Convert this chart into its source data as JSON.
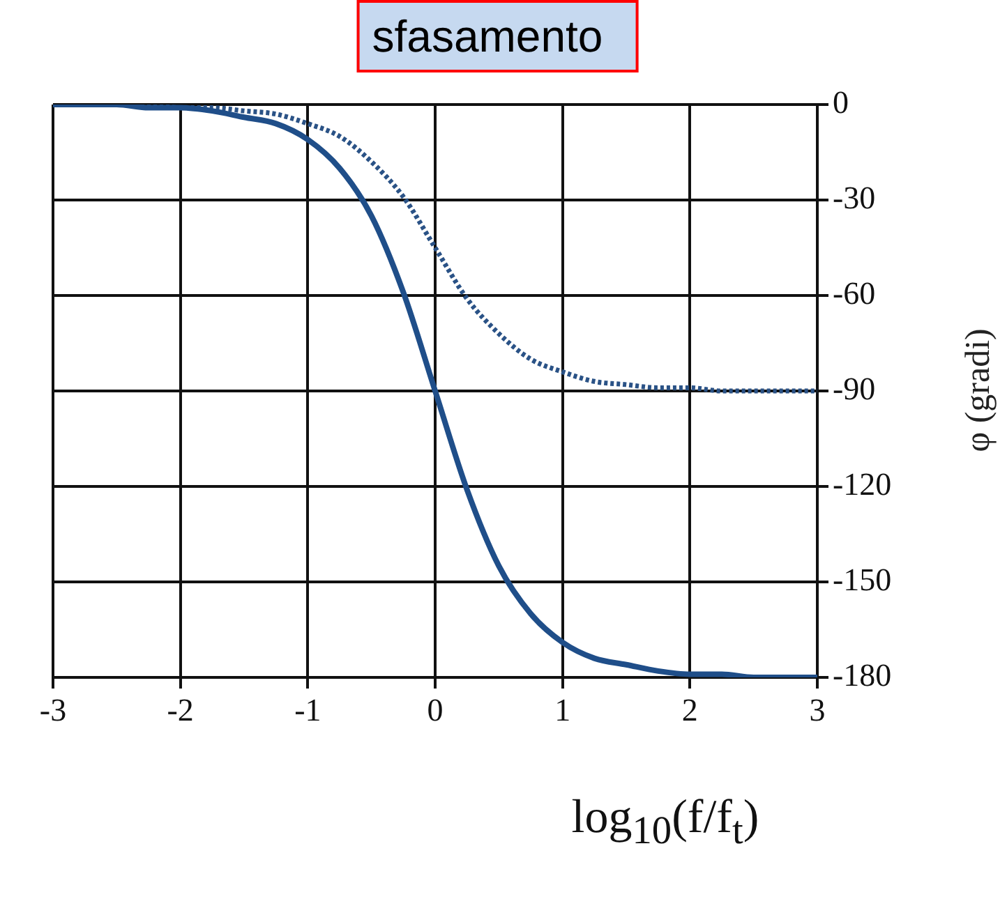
{
  "chart_data": {
    "type": "line",
    "title": "sfasamento",
    "xlabel": "log$_{10}$(f/f$_{t}$)",
    "ylabel": "φ (gradi)",
    "x": [
      -3,
      -2.75,
      -2.5,
      -2.25,
      -2,
      -1.75,
      -1.5,
      -1.25,
      -1,
      -0.75,
      -0.5,
      -0.25,
      0,
      0.25,
      0.5,
      0.75,
      1,
      1.25,
      1.5,
      1.75,
      2,
      2.25,
      2.5,
      2.75,
      3
    ],
    "series": [
      {
        "color": "#1f4e89",
        "values": [
          0,
          0,
          0,
          -1,
          -1,
          -2,
          -4,
          -6,
          -11,
          -20,
          -35,
          -59,
          -90,
          -121,
          -145,
          -160,
          -169,
          -174,
          -176,
          -178,
          -179,
          -179,
          -180,
          -180,
          -180
        ]
      },
      {
        "color": "#2a5286",
        "line_style": "dotted",
        "values": [
          0,
          0,
          0,
          0,
          -1,
          -1,
          -2,
          -3,
          -6,
          -10,
          -18,
          -29,
          -45,
          -61,
          -72,
          -80,
          -84,
          -87,
          -88,
          -89,
          -89,
          -90,
          -90,
          -90,
          -90
        ]
      }
    ],
    "xlim": [
      -3,
      3
    ],
    "xticks": [
      -3,
      -2,
      -1,
      0,
      1,
      2,
      3
    ],
    "ylim": [
      -180,
      0
    ],
    "yticks": [
      0,
      -30,
      -60,
      -90,
      -120,
      -150,
      -180
    ],
    "grid": true,
    "legend": false,
    "line_style": "solid"
  }
}
